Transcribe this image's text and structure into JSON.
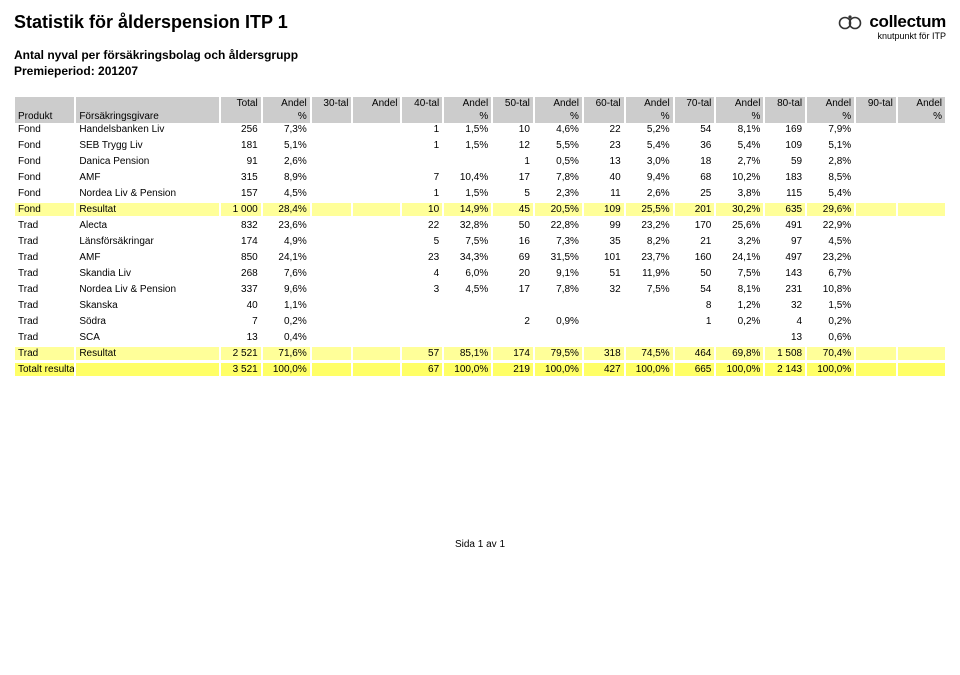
{
  "header": {
    "title": "Statistik för ålderspension ITP 1",
    "subtitle1": "Antal nyval per försäkringsbolag och åldersgrupp",
    "subtitle2": "Premieperiod: 201207",
    "logo_brand": "collectum",
    "logo_tagline": "knutpunkt för ITP"
  },
  "table": {
    "header_row1": [
      "",
      "",
      "Total",
      "Andel",
      "30-tal",
      "Andel",
      "40-tal",
      "Andel",
      "50-tal",
      "Andel",
      "60-tal",
      "Andel",
      "70-tal",
      "Andel",
      "80-tal",
      "Andel",
      "90-tal",
      "Andel"
    ],
    "header_row2": [
      "Produkt",
      "Försäkringsgivare",
      "",
      "%",
      "",
      "",
      "",
      "%",
      "",
      "%",
      "",
      "%",
      "",
      "%",
      "",
      "%",
      "",
      "%"
    ],
    "rows": [
      {
        "hl": false,
        "cells": [
          "Fond",
          "Handelsbanken Liv",
          "256",
          "7,3%",
          "",
          "",
          "1",
          "1,5%",
          "10",
          "4,6%",
          "22",
          "5,2%",
          "54",
          "8,1%",
          "169",
          "7,9%",
          "",
          ""
        ]
      },
      {
        "hl": false,
        "cells": [
          "Fond",
          "SEB Trygg Liv",
          "181",
          "5,1%",
          "",
          "",
          "1",
          "1,5%",
          "12",
          "5,5%",
          "23",
          "5,4%",
          "36",
          "5,4%",
          "109",
          "5,1%",
          "",
          ""
        ]
      },
      {
        "hl": false,
        "cells": [
          "Fond",
          "Danica Pension",
          "91",
          "2,6%",
          "",
          "",
          "",
          "",
          "1",
          "0,5%",
          "13",
          "3,0%",
          "18",
          "2,7%",
          "59",
          "2,8%",
          "",
          ""
        ]
      },
      {
        "hl": false,
        "cells": [
          "Fond",
          "AMF",
          "315",
          "8,9%",
          "",
          "",
          "7",
          "10,4%",
          "17",
          "7,8%",
          "40",
          "9,4%",
          "68",
          "10,2%",
          "183",
          "8,5%",
          "",
          ""
        ]
      },
      {
        "hl": false,
        "cells": [
          "Fond",
          "Nordea Liv & Pension",
          "157",
          "4,5%",
          "",
          "",
          "1",
          "1,5%",
          "5",
          "2,3%",
          "11",
          "2,6%",
          "25",
          "3,8%",
          "115",
          "5,4%",
          "",
          ""
        ]
      },
      {
        "hl": true,
        "cells": [
          "Fond",
          "Resultat",
          "1 000",
          "28,4%",
          "",
          "",
          "10",
          "14,9%",
          "45",
          "20,5%",
          "109",
          "25,5%",
          "201",
          "30,2%",
          "635",
          "29,6%",
          "",
          ""
        ]
      },
      {
        "hl": false,
        "cells": [
          "Trad",
          "Alecta",
          "832",
          "23,6%",
          "",
          "",
          "22",
          "32,8%",
          "50",
          "22,8%",
          "99",
          "23,2%",
          "170",
          "25,6%",
          "491",
          "22,9%",
          "",
          ""
        ]
      },
      {
        "hl": false,
        "cells": [
          "Trad",
          "Länsförsäkringar",
          "174",
          "4,9%",
          "",
          "",
          "5",
          "7,5%",
          "16",
          "7,3%",
          "35",
          "8,2%",
          "21",
          "3,2%",
          "97",
          "4,5%",
          "",
          ""
        ]
      },
      {
        "hl": false,
        "cells": [
          "Trad",
          "AMF",
          "850",
          "24,1%",
          "",
          "",
          "23",
          "34,3%",
          "69",
          "31,5%",
          "101",
          "23,7%",
          "160",
          "24,1%",
          "497",
          "23,2%",
          "",
          ""
        ]
      },
      {
        "hl": false,
        "cells": [
          "Trad",
          "Skandia Liv",
          "268",
          "7,6%",
          "",
          "",
          "4",
          "6,0%",
          "20",
          "9,1%",
          "51",
          "11,9%",
          "50",
          "7,5%",
          "143",
          "6,7%",
          "",
          ""
        ]
      },
      {
        "hl": false,
        "cells": [
          "Trad",
          "Nordea Liv & Pension",
          "337",
          "9,6%",
          "",
          "",
          "3",
          "4,5%",
          "17",
          "7,8%",
          "32",
          "7,5%",
          "54",
          "8,1%",
          "231",
          "10,8%",
          "",
          ""
        ]
      },
      {
        "hl": false,
        "cells": [
          "Trad",
          "Skanska",
          "40",
          "1,1%",
          "",
          "",
          "",
          "",
          "",
          "",
          "",
          "",
          "8",
          "1,2%",
          "32",
          "1,5%",
          "",
          ""
        ]
      },
      {
        "hl": false,
        "cells": [
          "Trad",
          "Södra",
          "7",
          "0,2%",
          "",
          "",
          "",
          "",
          "2",
          "0,9%",
          "",
          "",
          "1",
          "0,2%",
          "4",
          "0,2%",
          "",
          ""
        ]
      },
      {
        "hl": false,
        "cells": [
          "Trad",
          "SCA",
          "13",
          "0,4%",
          "",
          "",
          "",
          "",
          "",
          "",
          "",
          "",
          "",
          "",
          "13",
          "0,6%",
          "",
          ""
        ]
      },
      {
        "hl": true,
        "cells": [
          "Trad",
          "Resultat",
          "2 521",
          "71,6%",
          "",
          "",
          "57",
          "85,1%",
          "174",
          "79,5%",
          "318",
          "74,5%",
          "464",
          "69,8%",
          "1 508",
          "70,4%",
          "",
          ""
        ]
      },
      {
        "hl": "strong",
        "cells": [
          "Totalt resultat",
          "",
          "3 521",
          "100,0%",
          "",
          "",
          "67",
          "100,0%",
          "219",
          "100,0%",
          "427",
          "100,0%",
          "665",
          "100,0%",
          "2 143",
          "100,0%",
          "",
          ""
        ]
      }
    ]
  },
  "footer": "Sida 1 av 1"
}
